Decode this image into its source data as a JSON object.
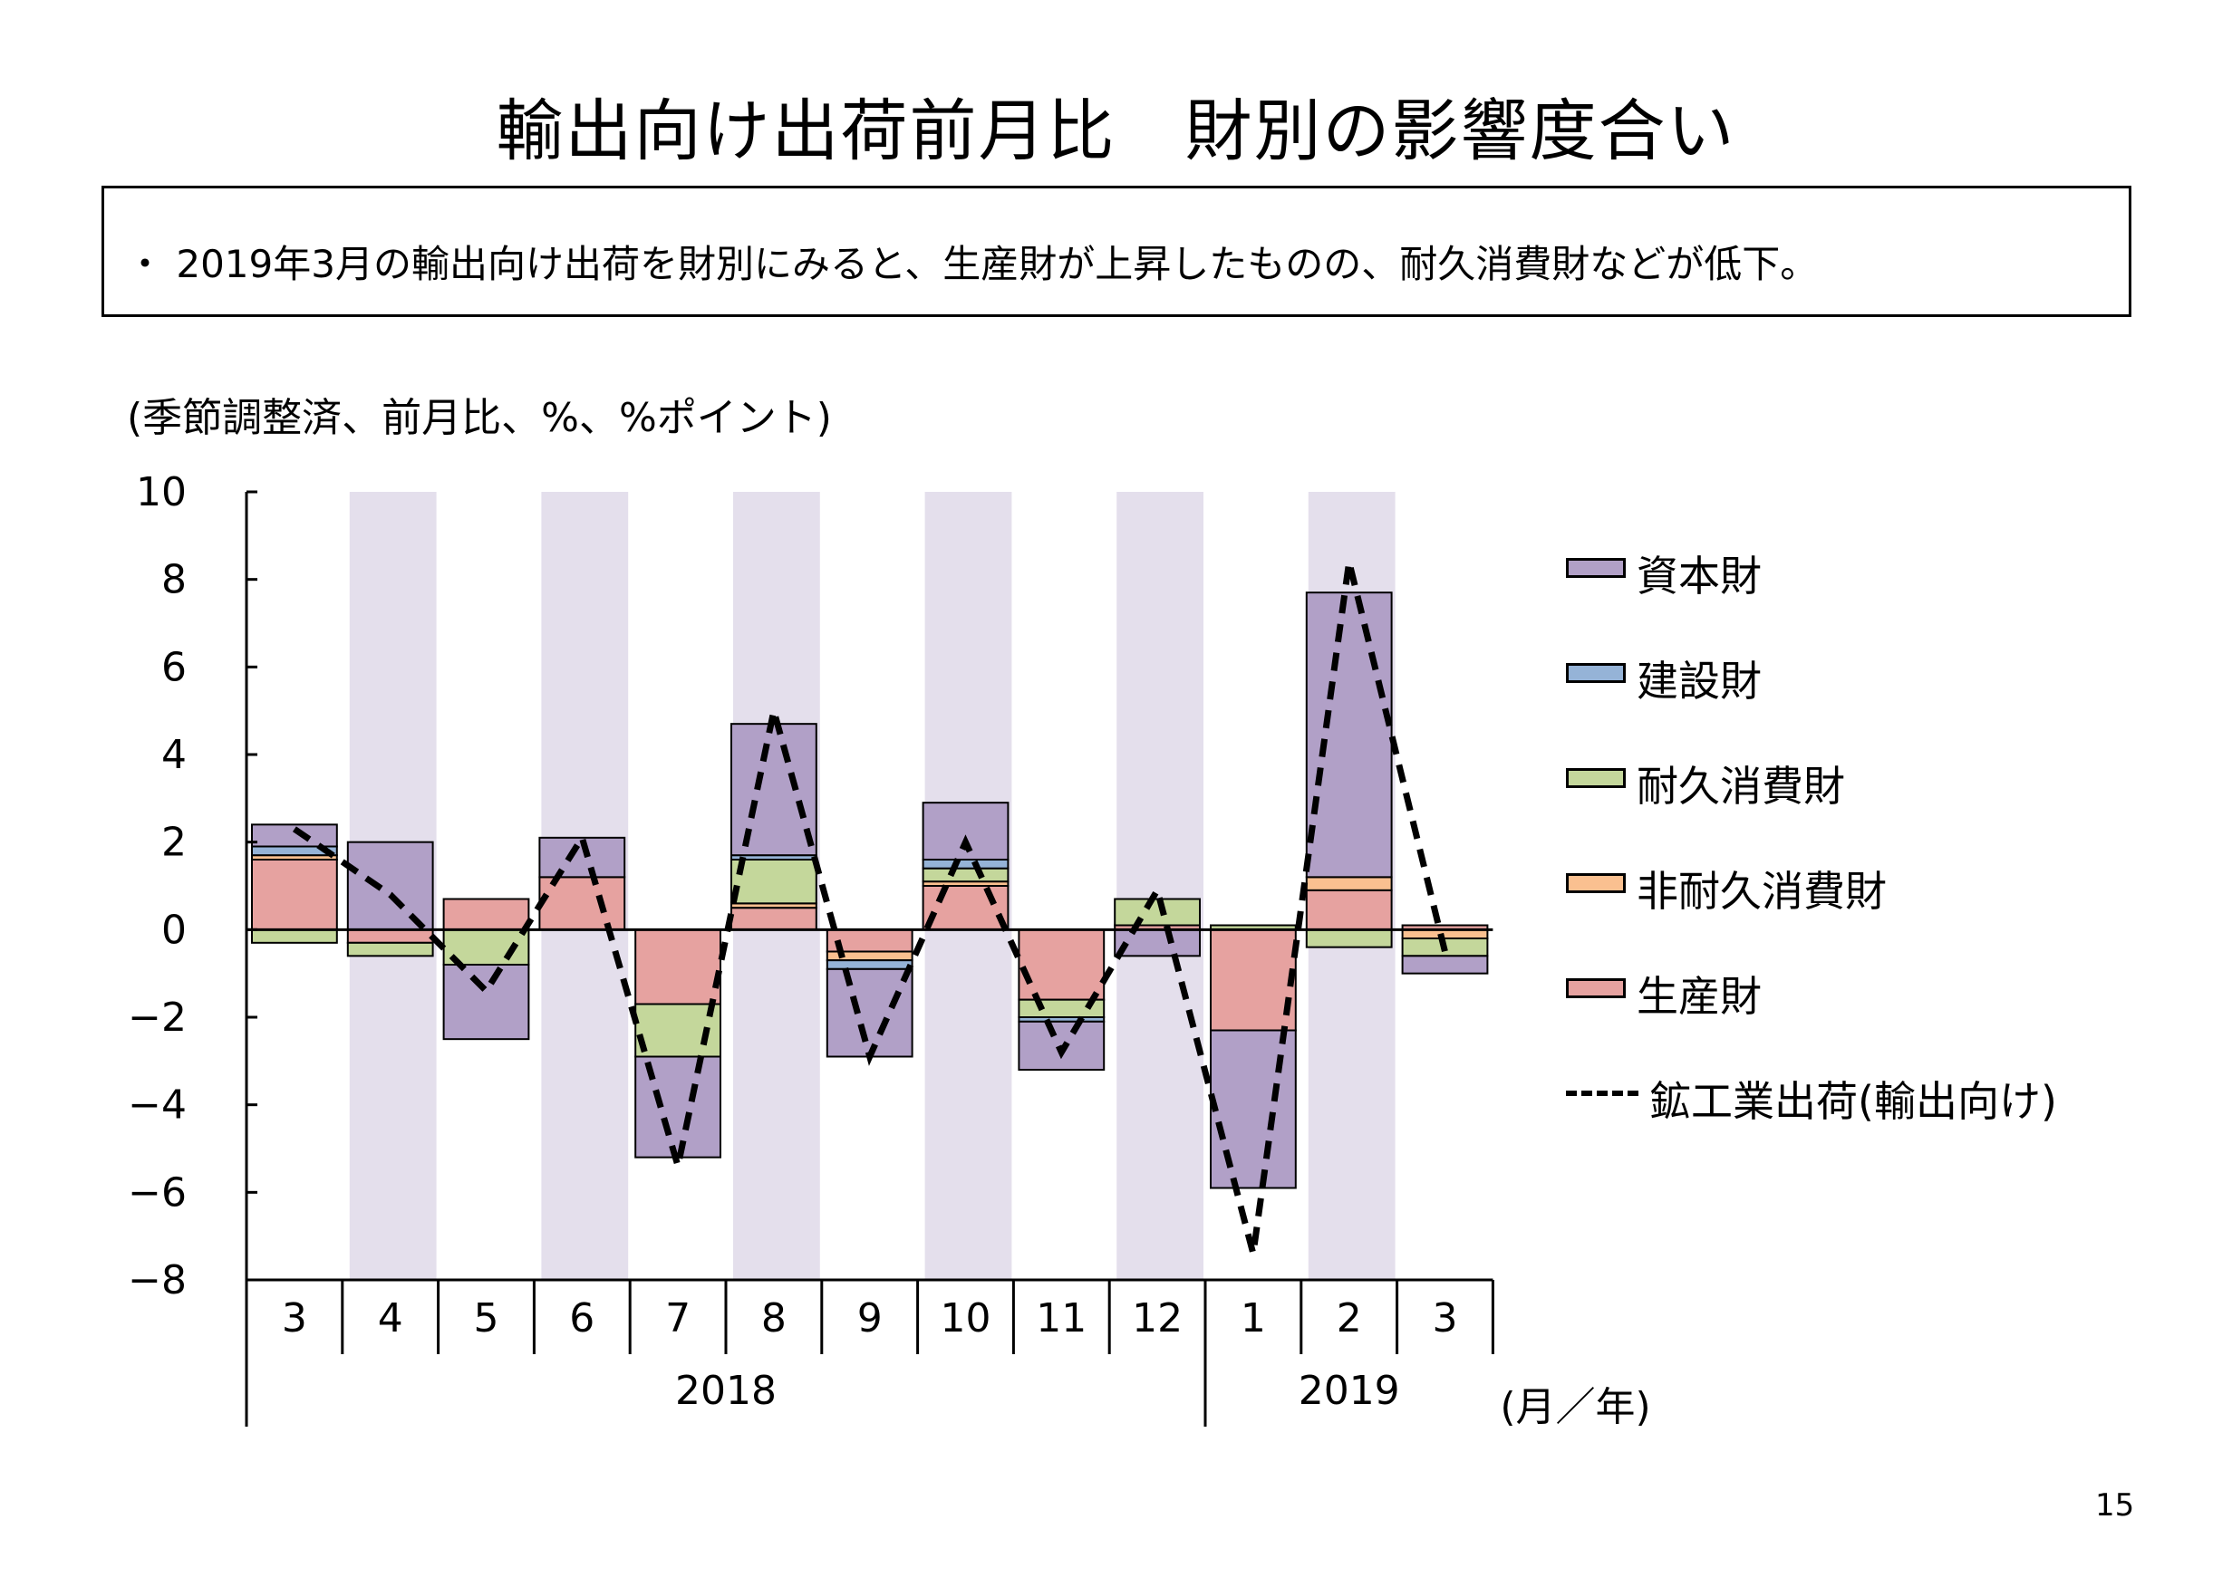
{
  "page": {
    "title": "輸出向け出荷前月比　財別の影響度合い",
    "summary": "・ 2019年3月の輸出向け出荷を財別にみると、生産財が上昇したものの、耐久消費財などが低下。",
    "unit_note": "(季節調整済、前月比、%、%ポイント)",
    "page_number": "15"
  },
  "chart_data": {
    "type": "bar",
    "stacked": true,
    "ylim": [
      -8,
      10
    ],
    "yticks": [
      "10",
      "8",
      "6",
      "4",
      "2",
      "0",
      "−2",
      "−4",
      "−6",
      "−8"
    ],
    "ytick_values": [
      10,
      8,
      6,
      4,
      2,
      0,
      -2,
      -4,
      -6,
      -8
    ],
    "categories": [
      "3",
      "4",
      "5",
      "6",
      "7",
      "8",
      "9",
      "10",
      "11",
      "12",
      "1",
      "2",
      "3"
    ],
    "year_groups": [
      {
        "label": "2018",
        "start": 0,
        "end": 9
      },
      {
        "label": "2019",
        "start": 10,
        "end": 12
      }
    ],
    "axis_unit_label": "(月／年)",
    "shaded_categories": [
      1,
      3,
      5,
      7,
      9,
      11
    ],
    "shade_color": "#e4dfec",
    "series": [
      {
        "name": "生産財",
        "color": "#e6a2a0",
        "values": [
          1.6,
          -0.3,
          0.7,
          1.2,
          -1.7,
          0.5,
          -0.5,
          1.0,
          -1.6,
          0.1,
          -2.3,
          0.9,
          0.1
        ]
      },
      {
        "name": "非耐久消費財",
        "color": "#fac090",
        "values": [
          0.1,
          0.0,
          0.0,
          0.0,
          0.0,
          0.1,
          -0.2,
          0.1,
          0.0,
          0.0,
          0.0,
          0.3,
          -0.2
        ]
      },
      {
        "name": "耐久消費財",
        "color": "#c4d79b",
        "values": [
          -0.3,
          -0.3,
          -0.8,
          0.0,
          -1.2,
          1.0,
          0.0,
          0.3,
          -0.4,
          0.6,
          0.1,
          -0.4,
          -0.4
        ]
      },
      {
        "name": "建設財",
        "color": "#95b3d7",
        "values": [
          0.2,
          0.0,
          0.0,
          0.0,
          0.0,
          0.1,
          -0.2,
          0.2,
          -0.1,
          0.0,
          0.0,
          0.0,
          0.0
        ]
      },
      {
        "name": "資本財",
        "color": "#b1a0c7",
        "values": [
          0.5,
          2.0,
          -1.7,
          0.9,
          -2.3,
          3.0,
          -2.0,
          1.3,
          -1.1,
          -0.6,
          -3.6,
          6.5,
          -0.4
        ]
      }
    ],
    "legend_order": [
      "資本財",
      "建設財",
      "耐久消費財",
      "非耐久消費財",
      "生産財"
    ],
    "line": {
      "name": "鉱工業出荷(輸出向け)",
      "style": "dashed",
      "color": "#000000",
      "values": [
        2.3,
        0.8,
        -1.4,
        2.1,
        -5.4,
        5.0,
        -2.9,
        2.0,
        -2.8,
        0.9,
        -7.4,
        8.4,
        -0.5
      ]
    },
    "legend_placement": "right"
  }
}
